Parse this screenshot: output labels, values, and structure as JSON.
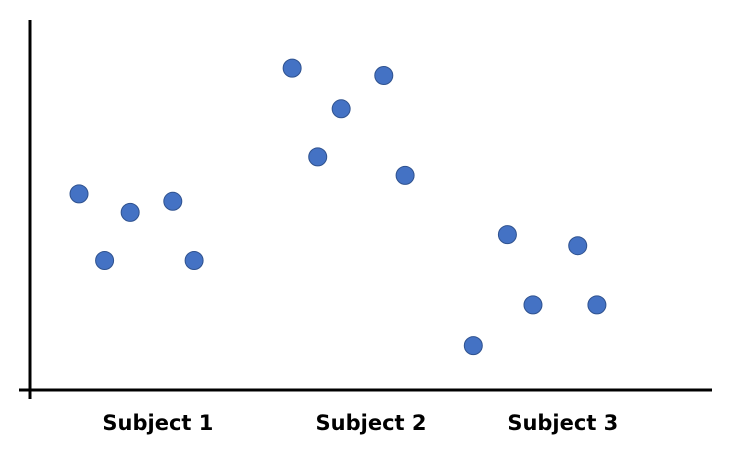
{
  "chart_data": {
    "type": "scatter",
    "title": "",
    "xlabel": "",
    "ylabel": "",
    "grid": false,
    "marker_color": "#4472C4",
    "marker_edge_color": "#2F528F",
    "axis_color": "#000000",
    "xlim": [
      0,
      3.2
    ],
    "ylim": [
      0,
      10
    ],
    "categories": [
      {
        "label": "Subject 1",
        "position": 0.6
      },
      {
        "label": "Subject 2",
        "position": 1.6
      },
      {
        "label": "Subject 3",
        "position": 2.5
      }
    ],
    "points": [
      {
        "x": 0.23,
        "y": 5.3
      },
      {
        "x": 0.35,
        "y": 3.5
      },
      {
        "x": 0.47,
        "y": 4.8
      },
      {
        "x": 0.67,
        "y": 5.1
      },
      {
        "x": 0.77,
        "y": 3.5
      },
      {
        "x": 1.23,
        "y": 8.7
      },
      {
        "x": 1.35,
        "y": 6.3
      },
      {
        "x": 1.46,
        "y": 7.6
      },
      {
        "x": 1.66,
        "y": 8.5
      },
      {
        "x": 1.76,
        "y": 5.8
      },
      {
        "x": 2.08,
        "y": 1.2
      },
      {
        "x": 2.24,
        "y": 4.2
      },
      {
        "x": 2.36,
        "y": 2.3
      },
      {
        "x": 2.57,
        "y": 3.9
      },
      {
        "x": 2.66,
        "y": 2.3
      }
    ]
  }
}
